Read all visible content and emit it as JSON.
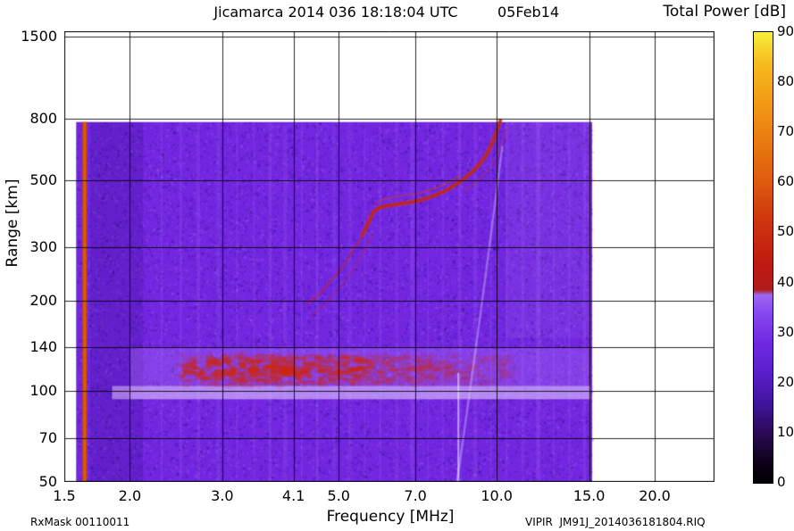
{
  "header": {
    "title": "Jicamarca 2014 036 18:18:04 UTC",
    "date": "05Feb14",
    "colorbar_title": "Total Power [dB]"
  },
  "footer": {
    "left": "RxMask 00110011",
    "right": "VIPIR  JM91J_2014036181804.RIQ"
  },
  "palette": {
    "background": "#ffffff",
    "text": "#000000",
    "noise_purple": "#7226e0",
    "noise_dark": "rgba(25,0,105,0.30)",
    "noise_light": "rgba(178,132,255,0.25)",
    "streak_light": "rgba(192,154,255,0.16)",
    "calibration_orange": "#cc4d00",
    "e_region_red": "rgba(206,38,12,0.65)",
    "trace_red": "#c52412",
    "trace_orange": "#d2400f",
    "grid": "rgba(0,0,0,0.85)"
  },
  "chart_data": {
    "type": "heatmap",
    "title": "Jicamarca 2014 036 18:18:04 UTC 05Feb14",
    "xlabel": "Frequency [MHz]",
    "ylabel": "Range [km]",
    "x_scale": "log",
    "y_scale": "log",
    "xlim": [
      1.5,
      26
    ],
    "ylim": [
      50,
      1560
    ],
    "x_ticks": [
      1.5,
      2.0,
      3.0,
      4.1,
      5.0,
      7.0,
      10.0,
      15.0,
      20.0
    ],
    "x_tick_labels": [
      "1.5",
      "2.0",
      "3.0",
      "4.1",
      "5.0",
      "7.0",
      "10.0",
      "15.0",
      "20.0"
    ],
    "y_ticks": [
      50,
      70,
      100,
      140,
      200,
      300,
      500,
      800,
      1500
    ],
    "y_tick_labels": [
      "50",
      "70",
      "100",
      "140",
      "200",
      "300",
      "500",
      "800",
      "1500"
    ],
    "colorbar": {
      "label": "Total Power [dB]",
      "min": 0,
      "max": 90,
      "ticks": [
        0,
        10,
        20,
        30,
        40,
        50,
        60,
        70,
        80,
        90
      ],
      "stops": [
        {
          "v": 0,
          "c": "#000000"
        },
        {
          "v": 4,
          "c": "#0d0118"
        },
        {
          "v": 10,
          "c": "#2a0a56"
        },
        {
          "v": 16,
          "c": "#41149e"
        },
        {
          "v": 22,
          "c": "#5a1ecb"
        },
        {
          "v": 28,
          "c": "#6f2ae3"
        },
        {
          "v": 34,
          "c": "#8747ef"
        },
        {
          "v": 37.5,
          "c": "#9d68f2"
        },
        {
          "v": 38.5,
          "c": "#b01c1c"
        },
        {
          "v": 44,
          "c": "#c01a10"
        },
        {
          "v": 52,
          "c": "#cd340d"
        },
        {
          "v": 60,
          "c": "#dd5a0e"
        },
        {
          "v": 68,
          "c": "#e97a10"
        },
        {
          "v": 76,
          "c": "#f29a14"
        },
        {
          "v": 84,
          "c": "#f7bd1e"
        },
        {
          "v": 90,
          "c": "#f8ef3c"
        }
      ]
    },
    "data_extent": {
      "f_min": 1.58,
      "f_max": 15.2,
      "r_min": 50,
      "r_max": 780
    },
    "background_noise_dB": 22,
    "features": {
      "calibration_stripe": {
        "f": 1.64,
        "power_dB": 55
      },
      "e_region_band": {
        "f_span": [
          2.0,
          15.0
        ],
        "r_span": [
          94,
          140
        ],
        "red_core_f_span": [
          2.5,
          10.8
        ],
        "red_core_r_span": [
          104,
          132
        ],
        "peak_f": 3.9,
        "peak_dB": 45
      },
      "f_trace_dB": 48,
      "f_trace_points": [
        [
          4.35,
          195
        ],
        [
          4.55,
          207
        ],
        [
          4.75,
          224
        ],
        [
          4.95,
          244
        ],
        [
          5.15,
          266
        ],
        [
          5.35,
          296
        ],
        [
          5.55,
          330
        ],
        [
          5.7,
          363
        ],
        [
          5.82,
          393
        ],
        [
          6.0,
          407
        ],
        [
          6.3,
          414
        ],
        [
          6.6,
          419
        ],
        [
          6.9,
          424
        ],
        [
          7.2,
          431
        ],
        [
          7.5,
          441
        ],
        [
          7.8,
          453
        ],
        [
          8.1,
          468
        ],
        [
          8.4,
          487
        ],
        [
          8.7,
          508
        ],
        [
          9.0,
          535
        ],
        [
          9.25,
          562
        ],
        [
          9.5,
          597
        ],
        [
          9.7,
          638
        ],
        [
          9.85,
          678
        ],
        [
          9.97,
          718
        ],
        [
          10.07,
          755
        ],
        [
          10.16,
          788
        ]
      ],
      "interference_streaks_mhz": [
        2.3,
        2.5,
        2.7,
        2.95,
        3.2,
        3.45,
        3.7,
        3.95,
        4.25,
        4.55,
        4.9,
        5.25,
        5.6,
        6.0,
        6.45,
        6.9,
        7.4,
        7.9,
        8.5,
        9.1,
        9.75,
        10.45,
        11.2,
        12.0,
        12.85,
        13.75,
        14.7
      ],
      "diagonal_streak": {
        "from": [
          8.4,
          50
        ],
        "via": [
          9.3,
          170
        ],
        "to": [
          10.25,
          650
        ]
      },
      "vertical_streak": {
        "f": 8.45,
        "r_span": [
          50,
          115
        ]
      }
    }
  }
}
